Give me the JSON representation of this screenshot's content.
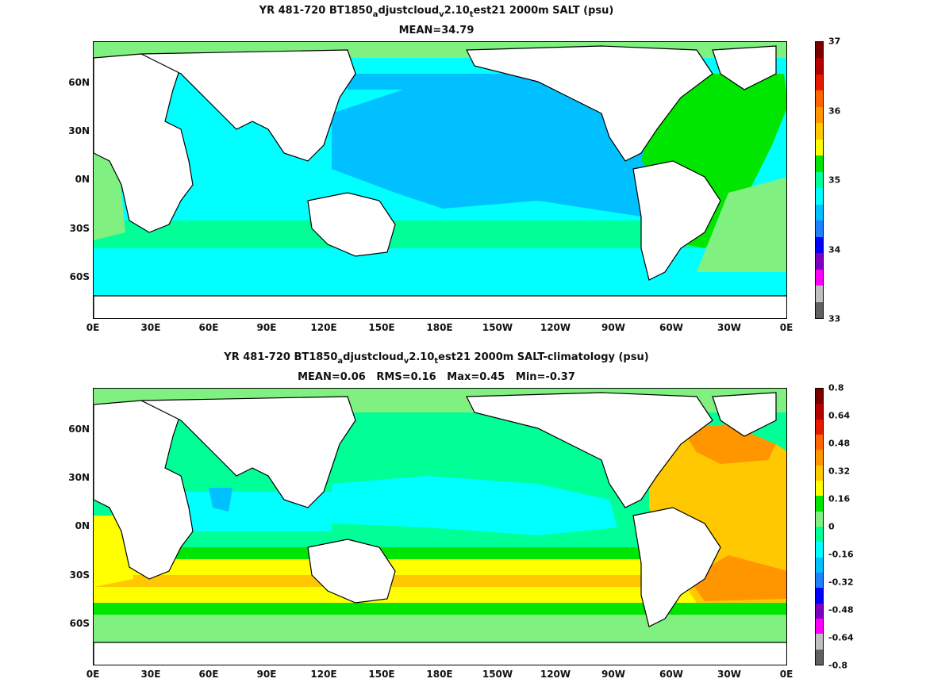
{
  "panels": [
    {
      "title_prefix": "YR 481-720 BT1850",
      "title_sub1": "a",
      "title_mid1": "djustcloud",
      "title_sub2": "v",
      "title_mid2": "2.10",
      "title_sub3": "t",
      "title_suffix": "est21 2000m SALT (psu)",
      "stats": "MEAN=34.79",
      "colorbar_labels": [
        "37",
        "36",
        "35",
        "34",
        "33"
      ],
      "colorbar_colors": [
        "#7a0000",
        "#b30000",
        "#e61a00",
        "#ff6400",
        "#ff9600",
        "#ffc800",
        "#ffff00",
        "#00e600",
        "#00ff96",
        "#00ffff",
        "#00c0ff",
        "#2080ff",
        "#0000ff",
        "#8000c0",
        "#ff00ff",
        "#c0c0c0",
        "#606060"
      ]
    },
    {
      "title_prefix": "YR 481-720 BT1850",
      "title_sub1": "a",
      "title_mid1": "djustcloud",
      "title_sub2": "v",
      "title_mid2": "2.10",
      "title_sub3": "t",
      "title_suffix": "est21 2000m SALT-climatology (psu)",
      "stats": "MEAN=0.06   RMS=0.16   Max=0.45   Min=-0.37",
      "colorbar_labels": [
        "0.8",
        "0.64",
        "0.48",
        "0.32",
        "0.16",
        "0",
        "-0.16",
        "-0.32",
        "-0.48",
        "-0.64",
        "-0.8"
      ],
      "colorbar_colors": [
        "#7a0000",
        "#b30000",
        "#e61a00",
        "#ff6400",
        "#ff9600",
        "#ffc800",
        "#ffff00",
        "#00e600",
        "#80f080",
        "#00ff96",
        "#00ffff",
        "#00c0ff",
        "#2080ff",
        "#0000ff",
        "#8000c0",
        "#ff00ff",
        "#c0c0c0",
        "#606060"
      ]
    }
  ],
  "x_ticks": [
    "0E",
    "30E",
    "60E",
    "90E",
    "120E",
    "150E",
    "180E",
    "150W",
    "120W",
    "90W",
    "60W",
    "30W",
    "0E"
  ],
  "y_ticks": [
    "60N",
    "30N",
    "0N",
    "30S",
    "60S"
  ]
}
